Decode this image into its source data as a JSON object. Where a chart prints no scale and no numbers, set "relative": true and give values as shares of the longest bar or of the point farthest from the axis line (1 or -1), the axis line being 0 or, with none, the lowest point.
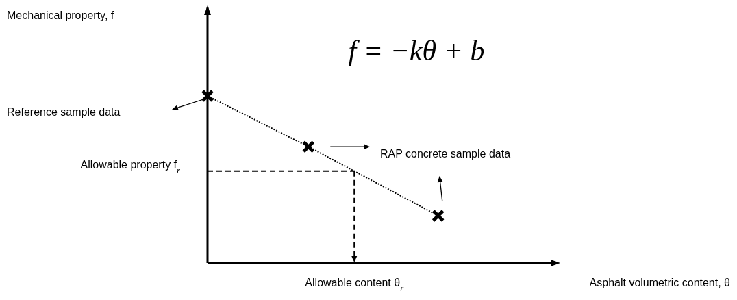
{
  "chart_data": {
    "type": "line",
    "relative": true,
    "xlabel": "Asphalt volumetric content, θ",
    "categories": [
      null,
      null,
      null,
      null,
      null,
      null,
      null,
      null,
      null,
      null,
      null,
      null,
      null,
      null,
      null,
      null,
      null,
      null,
      null,
      null,
      null,
      null,
      null,
      null,
      null
    ],
    "series": [
      {
        "color": "#000000",
        "values": [
          1,
          null,
          null,
          null,
          null,
          null,
          null,
          0.696,
          null,
          null,
          null,
          null,
          null,
          null,
          null,
          null,
          0.283,
          null,
          null,
          null,
          null,
          null,
          null,
          null,
          null
        ]
      }
    ],
    "marker": "cross",
    "line_style": "dotted",
    "ref_lines": [
      {
        "axis": "y",
        "value": 0.55,
        "label": "Allowable property f$_{r}$",
        "line_style": "dashed",
        "color": "#000000"
      }
    ],
    "annotations": [
      "f = −kθ + b",
      "Reference sample data",
      "RAP concrete sample data",
      "Allowable content θ$_{r}$",
      "Mechanical property, f"
    ]
  }
}
